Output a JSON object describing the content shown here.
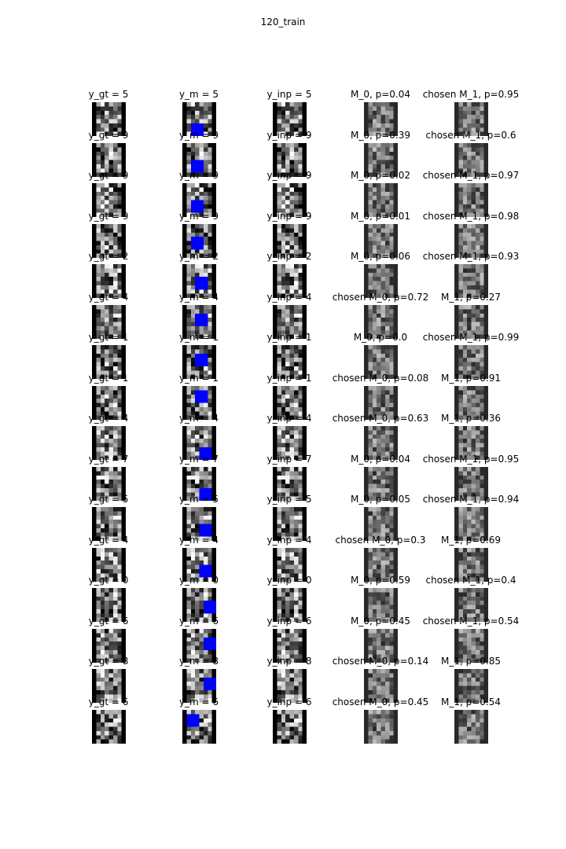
{
  "figure_title": "120_train",
  "chart_data": {
    "type": "heatmap",
    "title": "120_train",
    "grid": {
      "rows": 16,
      "cols": 5
    },
    "patch_color": "#0000ff",
    "rows": [
      {
        "y_gt": 5,
        "y_m": 5,
        "y_inp": 5,
        "m0_chosen": false,
        "m0_p": "0.04",
        "m1_chosen": true,
        "m1_p": "0.95"
      },
      {
        "y_gt": 9,
        "y_m": 9,
        "y_inp": 9,
        "m0_chosen": false,
        "m0_p": "0.39",
        "m1_chosen": true,
        "m1_p": "0.6"
      },
      {
        "y_gt": 9,
        "y_m": 9,
        "y_inp": 9,
        "m0_chosen": false,
        "m0_p": "0.02",
        "m1_chosen": true,
        "m1_p": "0.97"
      },
      {
        "y_gt": 9,
        "y_m": 9,
        "y_inp": 9,
        "m0_chosen": false,
        "m0_p": "0.01",
        "m1_chosen": true,
        "m1_p": "0.98"
      },
      {
        "y_gt": 2,
        "y_m": 2,
        "y_inp": 2,
        "m0_chosen": false,
        "m0_p": "0.06",
        "m1_chosen": true,
        "m1_p": "0.93"
      },
      {
        "y_gt": 4,
        "y_m": 4,
        "y_inp": 4,
        "m0_chosen": true,
        "m0_p": "0.72",
        "m1_chosen": false,
        "m1_p": "0.27"
      },
      {
        "y_gt": 1,
        "y_m": 1,
        "y_inp": 1,
        "m0_chosen": false,
        "m0_p": "0.0",
        "m1_chosen": true,
        "m1_p": "0.99"
      },
      {
        "y_gt": 1,
        "y_m": 1,
        "y_inp": 1,
        "m0_chosen": true,
        "m0_p": "0.08",
        "m1_chosen": false,
        "m1_p": "0.91"
      },
      {
        "y_gt": 4,
        "y_m": 4,
        "y_inp": 4,
        "m0_chosen": true,
        "m0_p": "0.63",
        "m1_chosen": false,
        "m1_p": "0.36"
      },
      {
        "y_gt": 7,
        "y_m": 7,
        "y_inp": 7,
        "m0_chosen": false,
        "m0_p": "0.04",
        "m1_chosen": true,
        "m1_p": "0.95"
      },
      {
        "y_gt": 5,
        "y_m": 5,
        "y_inp": 5,
        "m0_chosen": false,
        "m0_p": "0.05",
        "m1_chosen": true,
        "m1_p": "0.94"
      },
      {
        "y_gt": 4,
        "y_m": 4,
        "y_inp": 4,
        "m0_chosen": true,
        "m0_p": "0.3",
        "m1_chosen": false,
        "m1_p": "0.69"
      },
      {
        "y_gt": 0,
        "y_m": 0,
        "y_inp": 0,
        "m0_chosen": false,
        "m0_p": "0.59",
        "m1_chosen": true,
        "m1_p": "0.4"
      },
      {
        "y_gt": 6,
        "y_m": 6,
        "y_inp": 6,
        "m0_chosen": false,
        "m0_p": "0.45",
        "m1_chosen": true,
        "m1_p": "0.54"
      },
      {
        "y_gt": 8,
        "y_m": 8,
        "y_inp": 8,
        "m0_chosen": true,
        "m0_p": "0.14",
        "m1_chosen": false,
        "m1_p": "0.85"
      },
      {
        "y_gt": 6,
        "y_m": 6,
        "y_inp": 6,
        "m0_chosen": true,
        "m0_p": "0.45",
        "m1_chosen": false,
        "m1_p": "0.54"
      }
    ]
  }
}
